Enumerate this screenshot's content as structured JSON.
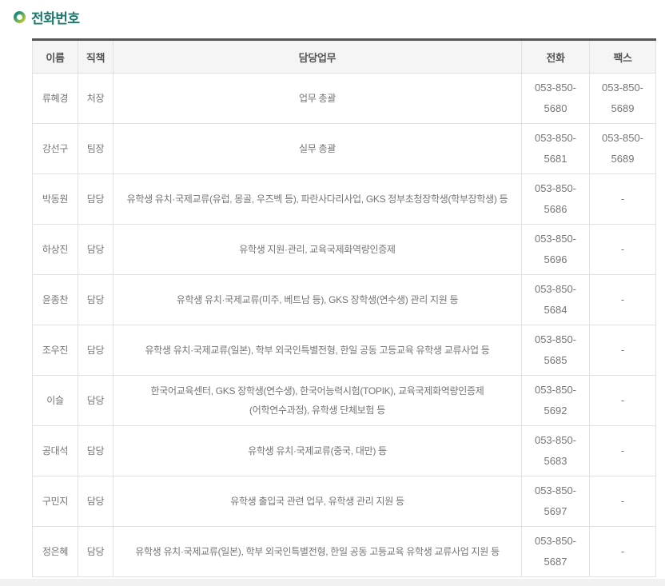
{
  "page": {
    "title": "전화번호"
  },
  "colors": {
    "title_text": "#1a7a6c",
    "icon_gradient_start": "#14897b",
    "icon_gradient_end": "#b8cf2f",
    "table_top_border": "#555555",
    "header_bg": "#f5f5f5",
    "header_text": "#555555",
    "body_text": "#757575",
    "cell_border": "#e1e1e1",
    "footer_strip": "#f1f1f1"
  },
  "icons": {
    "title_bullet": "ring-icon"
  },
  "table": {
    "columns": [
      "이름",
      "직책",
      "담당업무",
      "전화",
      "팩스"
    ],
    "rows": [
      {
        "name": "류혜경",
        "position": "처장",
        "duty": "업무 총괄",
        "phone": "053-850-5680",
        "fax": "053-850-5689"
      },
      {
        "name": "강선구",
        "position": "팀장",
        "duty": "실무 총괄",
        "phone": "053-850-5681",
        "fax": "053-850-5689"
      },
      {
        "name": "박동원",
        "position": "담당",
        "duty": "유학생 유치·국제교류(유럽, 몽골, 우즈벡 등), 파란사다리사업, GKS 정부초청장학생(학부장학생) 등",
        "phone": "053-850-5686",
        "fax": "-"
      },
      {
        "name": "하상진",
        "position": "담당",
        "duty": "유학생 지원·관리, 교육국제화역량인증제",
        "phone": "053-850-5696",
        "fax": "-"
      },
      {
        "name": "윤종찬",
        "position": "담당",
        "duty": "유학생 유치·국제교류(미주, 베트남 등), GKS 장학생(연수생) 관리 지원 등",
        "phone": "053-850-5684",
        "fax": "-"
      },
      {
        "name": "조우진",
        "position": "담당",
        "duty": "유학생 유치·국제교류(일본), 학부 외국인특별전형, 한일 공동 고등교육 유학생 교류사업 등",
        "phone": "053-850-5685",
        "fax": "-"
      },
      {
        "name": "이슬",
        "position": "담당",
        "duty": "한국어교육센터, GKS 장학생(연수생), 한국어능력시험(TOPIK), 교육국제화역량인증제(어학연수과정), 유학생 단체보험 등",
        "phone": "053-850-5692",
        "fax": "-"
      },
      {
        "name": "공대석",
        "position": "담당",
        "duty": "유학생 유치·국제교류(중국, 대만) 등",
        "phone": "053-850-5683",
        "fax": "-"
      },
      {
        "name": "구민지",
        "position": "담당",
        "duty": "유학생 출입국 관련 업무, 유학생 관리 지원 등",
        "phone": "053-850-5697",
        "fax": "-"
      },
      {
        "name": "정은혜",
        "position": "담당",
        "duty": "유학생 유치·국제교류(일본), 학부 외국인특별전형, 한일 공동 고등교육 유학생 교류사업 지원 등",
        "phone": "053-850-5687",
        "fax": "-"
      }
    ]
  }
}
